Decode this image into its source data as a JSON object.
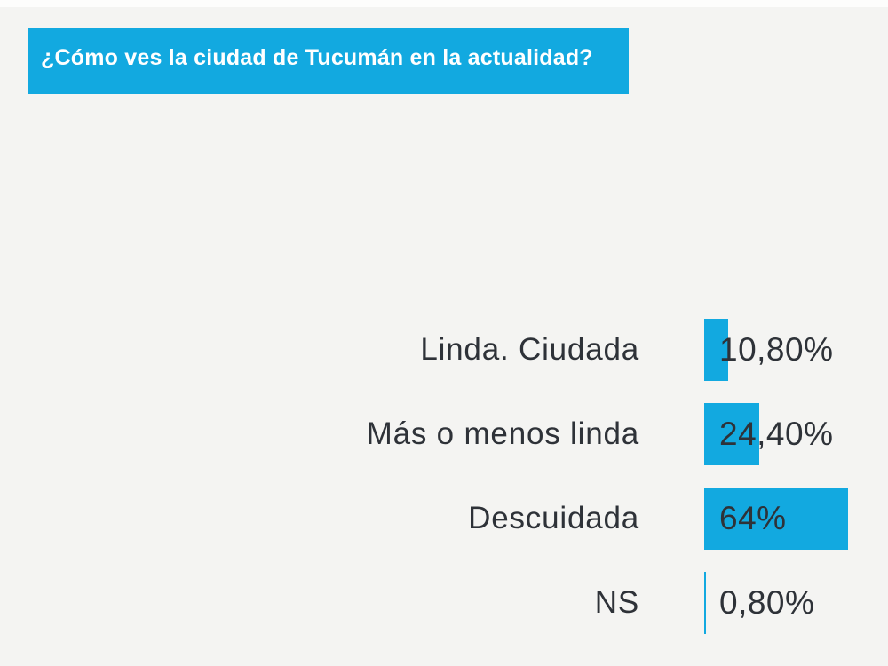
{
  "page": {
    "background_color": "#f4f4f2"
  },
  "header": {
    "title": "¿Cómo ves la ciudad de Tucumán en la actualidad?",
    "background_color": "#12a9e0",
    "text_color": "#ffffff"
  },
  "chart_data": {
    "type": "bar",
    "orientation": "horizontal",
    "title": "¿Cómo ves la ciudad de Tucumán en la actualidad?",
    "categories": [
      "Linda. Ciudada",
      "Más o menos linda",
      "Descuidada",
      "NS"
    ],
    "values": [
      10.8,
      24.4,
      64,
      0.8
    ],
    "value_labels": [
      "10,80%",
      "24,40%",
      "64%",
      "0,80%"
    ],
    "bar_color": "#12a9e0",
    "label_color": "#2e3238",
    "xlim": [
      0,
      100
    ],
    "grid": false,
    "legend": false
  }
}
